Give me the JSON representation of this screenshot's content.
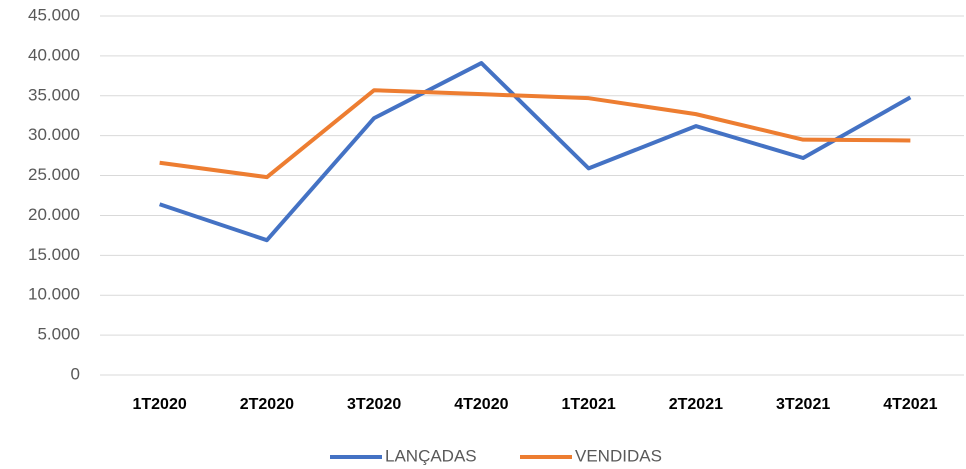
{
  "chart_data": {
    "type": "line",
    "categories": [
      "1T2020",
      "2T2020",
      "3T2020",
      "4T2020",
      "1T2021",
      "2T2021",
      "3T2021",
      "4T2021"
    ],
    "series": [
      {
        "name": "LANÇADAS",
        "color": "#4472c4",
        "values": [
          21400,
          16900,
          32200,
          39100,
          25900,
          31200,
          27200,
          34800
        ]
      },
      {
        "name": "VENDIDAS",
        "color": "#ed7d31",
        "values": [
          26600,
          24800,
          35700,
          35200,
          34700,
          32700,
          29500,
          29400
        ]
      }
    ],
    "ylim": [
      0,
      45000
    ],
    "yticks": [
      0,
      {
        "value": 5000,
        "label": "5.000"
      },
      {
        "value": 10000,
        "label": "10.000"
      },
      {
        "value": 15000,
        "label": "15.000"
      },
      {
        "value": 20000,
        "label": "20.000"
      },
      {
        "value": 25000,
        "label": "25.000"
      },
      {
        "value": 30000,
        "label": "30.000"
      },
      {
        "value": 35000,
        "label": "35.000"
      },
      {
        "value": 40000,
        "label": "40.000"
      },
      {
        "value": 45000,
        "label": "45.000"
      }
    ],
    "grid": true,
    "legend": "bottom"
  }
}
